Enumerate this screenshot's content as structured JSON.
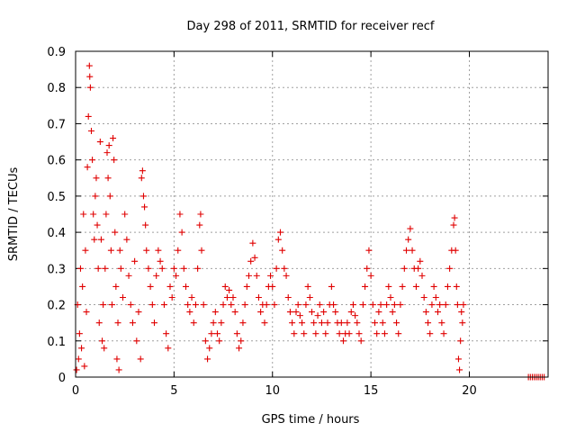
{
  "chart_data": {
    "type": "scatter",
    "title": "Day 298 of 2011, SRMTID for receiver recf",
    "xlabel": "GPS time / hours",
    "ylabel": "SRMTID / TECUs",
    "xlim": [
      0,
      24
    ],
    "ylim": [
      0,
      0.9
    ],
    "xticks": [
      0,
      5,
      10,
      15,
      20
    ],
    "yticks": [
      0,
      0.1,
      0.2,
      0.3,
      0.4,
      0.5,
      0.6,
      0.7,
      0.8,
      0.9
    ],
    "xtick_labels": [
      "0",
      "5",
      "10",
      "15",
      "20"
    ],
    "ytick_labels": [
      "0",
      "0.1",
      "0.2",
      "0.3",
      "0.4",
      "0.5",
      "0.6",
      "0.7",
      "0.8",
      "0.9"
    ],
    "grid": true,
    "marker": "+",
    "color": "#e00000",
    "series": [
      {
        "name": "SRMTID",
        "points": [
          [
            0.05,
            0.02
          ],
          [
            0.1,
            0.2
          ],
          [
            0.15,
            0.05
          ],
          [
            0.2,
            0.12
          ],
          [
            0.25,
            0.3
          ],
          [
            0.3,
            0.08
          ],
          [
            0.35,
            0.25
          ],
          [
            0.4,
            0.45
          ],
          [
            0.45,
            0.03
          ],
          [
            0.5,
            0.35
          ],
          [
            0.55,
            0.18
          ],
          [
            0.6,
            0.58
          ],
          [
            0.65,
            0.72
          ],
          [
            0.7,
            0.86
          ],
          [
            0.72,
            0.83
          ],
          [
            0.75,
            0.8
          ],
          [
            0.8,
            0.68
          ],
          [
            0.85,
            0.6
          ],
          [
            0.9,
            0.45
          ],
          [
            0.95,
            0.38
          ],
          [
            1.0,
            0.5
          ],
          [
            1.05,
            0.55
          ],
          [
            1.1,
            0.42
          ],
          [
            1.15,
            0.3
          ],
          [
            1.2,
            0.15
          ],
          [
            1.25,
            0.65
          ],
          [
            1.3,
            0.38
          ],
          [
            1.35,
            0.1
          ],
          [
            1.4,
            0.2
          ],
          [
            1.45,
            0.08
          ],
          [
            1.5,
            0.3
          ],
          [
            1.55,
            0.45
          ],
          [
            1.6,
            0.62
          ],
          [
            1.65,
            0.55
          ],
          [
            1.7,
            0.64
          ],
          [
            1.75,
            0.5
          ],
          [
            1.8,
            0.35
          ],
          [
            1.85,
            0.2
          ],
          [
            1.9,
            0.66
          ],
          [
            1.95,
            0.6
          ],
          [
            2.0,
            0.4
          ],
          [
            2.05,
            0.25
          ],
          [
            2.1,
            0.05
          ],
          [
            2.15,
            0.15
          ],
          [
            2.2,
            0.02
          ],
          [
            2.25,
            0.35
          ],
          [
            2.3,
            0.3
          ],
          [
            2.4,
            0.22
          ],
          [
            2.5,
            0.45
          ],
          [
            2.6,
            0.38
          ],
          [
            2.7,
            0.28
          ],
          [
            2.8,
            0.2
          ],
          [
            2.9,
            0.15
          ],
          [
            3.0,
            0.32
          ],
          [
            3.1,
            0.1
          ],
          [
            3.2,
            0.18
          ],
          [
            3.3,
            0.05
          ],
          [
            3.35,
            0.55
          ],
          [
            3.4,
            0.57
          ],
          [
            3.45,
            0.5
          ],
          [
            3.5,
            0.47
          ],
          [
            3.55,
            0.42
          ],
          [
            3.6,
            0.35
          ],
          [
            3.7,
            0.3
          ],
          [
            3.8,
            0.25
          ],
          [
            3.9,
            0.2
          ],
          [
            4.0,
            0.15
          ],
          [
            4.1,
            0.28
          ],
          [
            4.2,
            0.35
          ],
          [
            4.3,
            0.32
          ],
          [
            4.4,
            0.3
          ],
          [
            4.5,
            0.2
          ],
          [
            4.6,
            0.12
          ],
          [
            4.7,
            0.08
          ],
          [
            4.8,
            0.25
          ],
          [
            4.9,
            0.22
          ],
          [
            5.0,
            0.3
          ],
          [
            5.1,
            0.28
          ],
          [
            5.2,
            0.35
          ],
          [
            5.3,
            0.45
          ],
          [
            5.4,
            0.4
          ],
          [
            5.5,
            0.3
          ],
          [
            5.6,
            0.25
          ],
          [
            5.7,
            0.2
          ],
          [
            5.8,
            0.18
          ],
          [
            5.9,
            0.22
          ],
          [
            6.0,
            0.15
          ],
          [
            6.1,
            0.2
          ],
          [
            6.2,
            0.3
          ],
          [
            6.3,
            0.42
          ],
          [
            6.35,
            0.45
          ],
          [
            6.4,
            0.35
          ],
          [
            6.5,
            0.2
          ],
          [
            6.6,
            0.1
          ],
          [
            6.7,
            0.05
          ],
          [
            6.8,
            0.08
          ],
          [
            6.9,
            0.12
          ],
          [
            7.0,
            0.15
          ],
          [
            7.1,
            0.18
          ],
          [
            7.2,
            0.12
          ],
          [
            7.3,
            0.1
          ],
          [
            7.4,
            0.15
          ],
          [
            7.5,
            0.2
          ],
          [
            7.6,
            0.25
          ],
          [
            7.7,
            0.22
          ],
          [
            7.8,
            0.24
          ],
          [
            7.9,
            0.2
          ],
          [
            8.0,
            0.22
          ],
          [
            8.1,
            0.18
          ],
          [
            8.2,
            0.12
          ],
          [
            8.3,
            0.08
          ],
          [
            8.4,
            0.1
          ],
          [
            8.5,
            0.15
          ],
          [
            8.6,
            0.2
          ],
          [
            8.7,
            0.25
          ],
          [
            8.8,
            0.28
          ],
          [
            8.9,
            0.32
          ],
          [
            9.0,
            0.37
          ],
          [
            9.1,
            0.33
          ],
          [
            9.2,
            0.28
          ],
          [
            9.3,
            0.22
          ],
          [
            9.4,
            0.18
          ],
          [
            9.5,
            0.2
          ],
          [
            9.6,
            0.15
          ],
          [
            9.7,
            0.2
          ],
          [
            9.8,
            0.25
          ],
          [
            9.9,
            0.28
          ],
          [
            10.0,
            0.25
          ],
          [
            10.1,
            0.2
          ],
          [
            10.2,
            0.3
          ],
          [
            10.3,
            0.38
          ],
          [
            10.4,
            0.4
          ],
          [
            10.5,
            0.35
          ],
          [
            10.6,
            0.3
          ],
          [
            10.7,
            0.28
          ],
          [
            10.8,
            0.22
          ],
          [
            10.9,
            0.18
          ],
          [
            11.0,
            0.15
          ],
          [
            11.1,
            0.12
          ],
          [
            11.2,
            0.18
          ],
          [
            11.3,
            0.2
          ],
          [
            11.4,
            0.17
          ],
          [
            11.5,
            0.15
          ],
          [
            11.6,
            0.12
          ],
          [
            11.7,
            0.2
          ],
          [
            11.8,
            0.25
          ],
          [
            11.9,
            0.22
          ],
          [
            12.0,
            0.18
          ],
          [
            12.1,
            0.15
          ],
          [
            12.2,
            0.12
          ],
          [
            12.3,
            0.17
          ],
          [
            12.4,
            0.2
          ],
          [
            12.5,
            0.15
          ],
          [
            12.6,
            0.18
          ],
          [
            12.7,
            0.12
          ],
          [
            12.8,
            0.15
          ],
          [
            12.9,
            0.2
          ],
          [
            13.0,
            0.25
          ],
          [
            13.1,
            0.2
          ],
          [
            13.2,
            0.18
          ],
          [
            13.3,
            0.15
          ],
          [
            13.4,
            0.12
          ],
          [
            13.5,
            0.15
          ],
          [
            13.6,
            0.1
          ],
          [
            13.7,
            0.12
          ],
          [
            13.8,
            0.15
          ],
          [
            13.9,
            0.12
          ],
          [
            14.0,
            0.18
          ],
          [
            14.1,
            0.2
          ],
          [
            14.2,
            0.17
          ],
          [
            14.3,
            0.15
          ],
          [
            14.4,
            0.12
          ],
          [
            14.5,
            0.1
          ],
          [
            14.6,
            0.2
          ],
          [
            14.7,
            0.25
          ],
          [
            14.8,
            0.3
          ],
          [
            14.9,
            0.35
          ],
          [
            15.0,
            0.28
          ],
          [
            15.1,
            0.2
          ],
          [
            15.2,
            0.15
          ],
          [
            15.3,
            0.12
          ],
          [
            15.4,
            0.18
          ],
          [
            15.5,
            0.2
          ],
          [
            15.6,
            0.15
          ],
          [
            15.7,
            0.12
          ],
          [
            15.8,
            0.2
          ],
          [
            15.9,
            0.25
          ],
          [
            16.0,
            0.22
          ],
          [
            16.1,
            0.18
          ],
          [
            16.2,
            0.2
          ],
          [
            16.3,
            0.15
          ],
          [
            16.4,
            0.12
          ],
          [
            16.5,
            0.2
          ],
          [
            16.6,
            0.25
          ],
          [
            16.7,
            0.3
          ],
          [
            16.8,
            0.35
          ],
          [
            16.9,
            0.38
          ],
          [
            17.0,
            0.41
          ],
          [
            17.1,
            0.35
          ],
          [
            17.2,
            0.3
          ],
          [
            17.3,
            0.25
          ],
          [
            17.4,
            0.3
          ],
          [
            17.5,
            0.32
          ],
          [
            17.6,
            0.28
          ],
          [
            17.7,
            0.22
          ],
          [
            17.8,
            0.18
          ],
          [
            17.9,
            0.15
          ],
          [
            18.0,
            0.12
          ],
          [
            18.1,
            0.2
          ],
          [
            18.2,
            0.25
          ],
          [
            18.3,
            0.22
          ],
          [
            18.4,
            0.18
          ],
          [
            18.5,
            0.2
          ],
          [
            18.6,
            0.15
          ],
          [
            18.7,
            0.12
          ],
          [
            18.8,
            0.2
          ],
          [
            18.9,
            0.25
          ],
          [
            19.0,
            0.3
          ],
          [
            19.1,
            0.35
          ],
          [
            19.2,
            0.42
          ],
          [
            19.25,
            0.44
          ],
          [
            19.3,
            0.35
          ],
          [
            19.35,
            0.25
          ],
          [
            19.4,
            0.2
          ],
          [
            19.45,
            0.05
          ],
          [
            19.5,
            0.02
          ],
          [
            19.55,
            0.1
          ],
          [
            19.6,
            0.18
          ],
          [
            19.65,
            0.15
          ],
          [
            19.7,
            0.2
          ],
          [
            23.0,
            0.0
          ],
          [
            23.1,
            0.0
          ],
          [
            23.2,
            0.0
          ],
          [
            23.3,
            0.0
          ],
          [
            23.4,
            0.0
          ],
          [
            23.5,
            0.0
          ],
          [
            23.6,
            0.0
          ],
          [
            23.7,
            0.0
          ],
          [
            23.8,
            0.0
          ]
        ]
      }
    ]
  }
}
